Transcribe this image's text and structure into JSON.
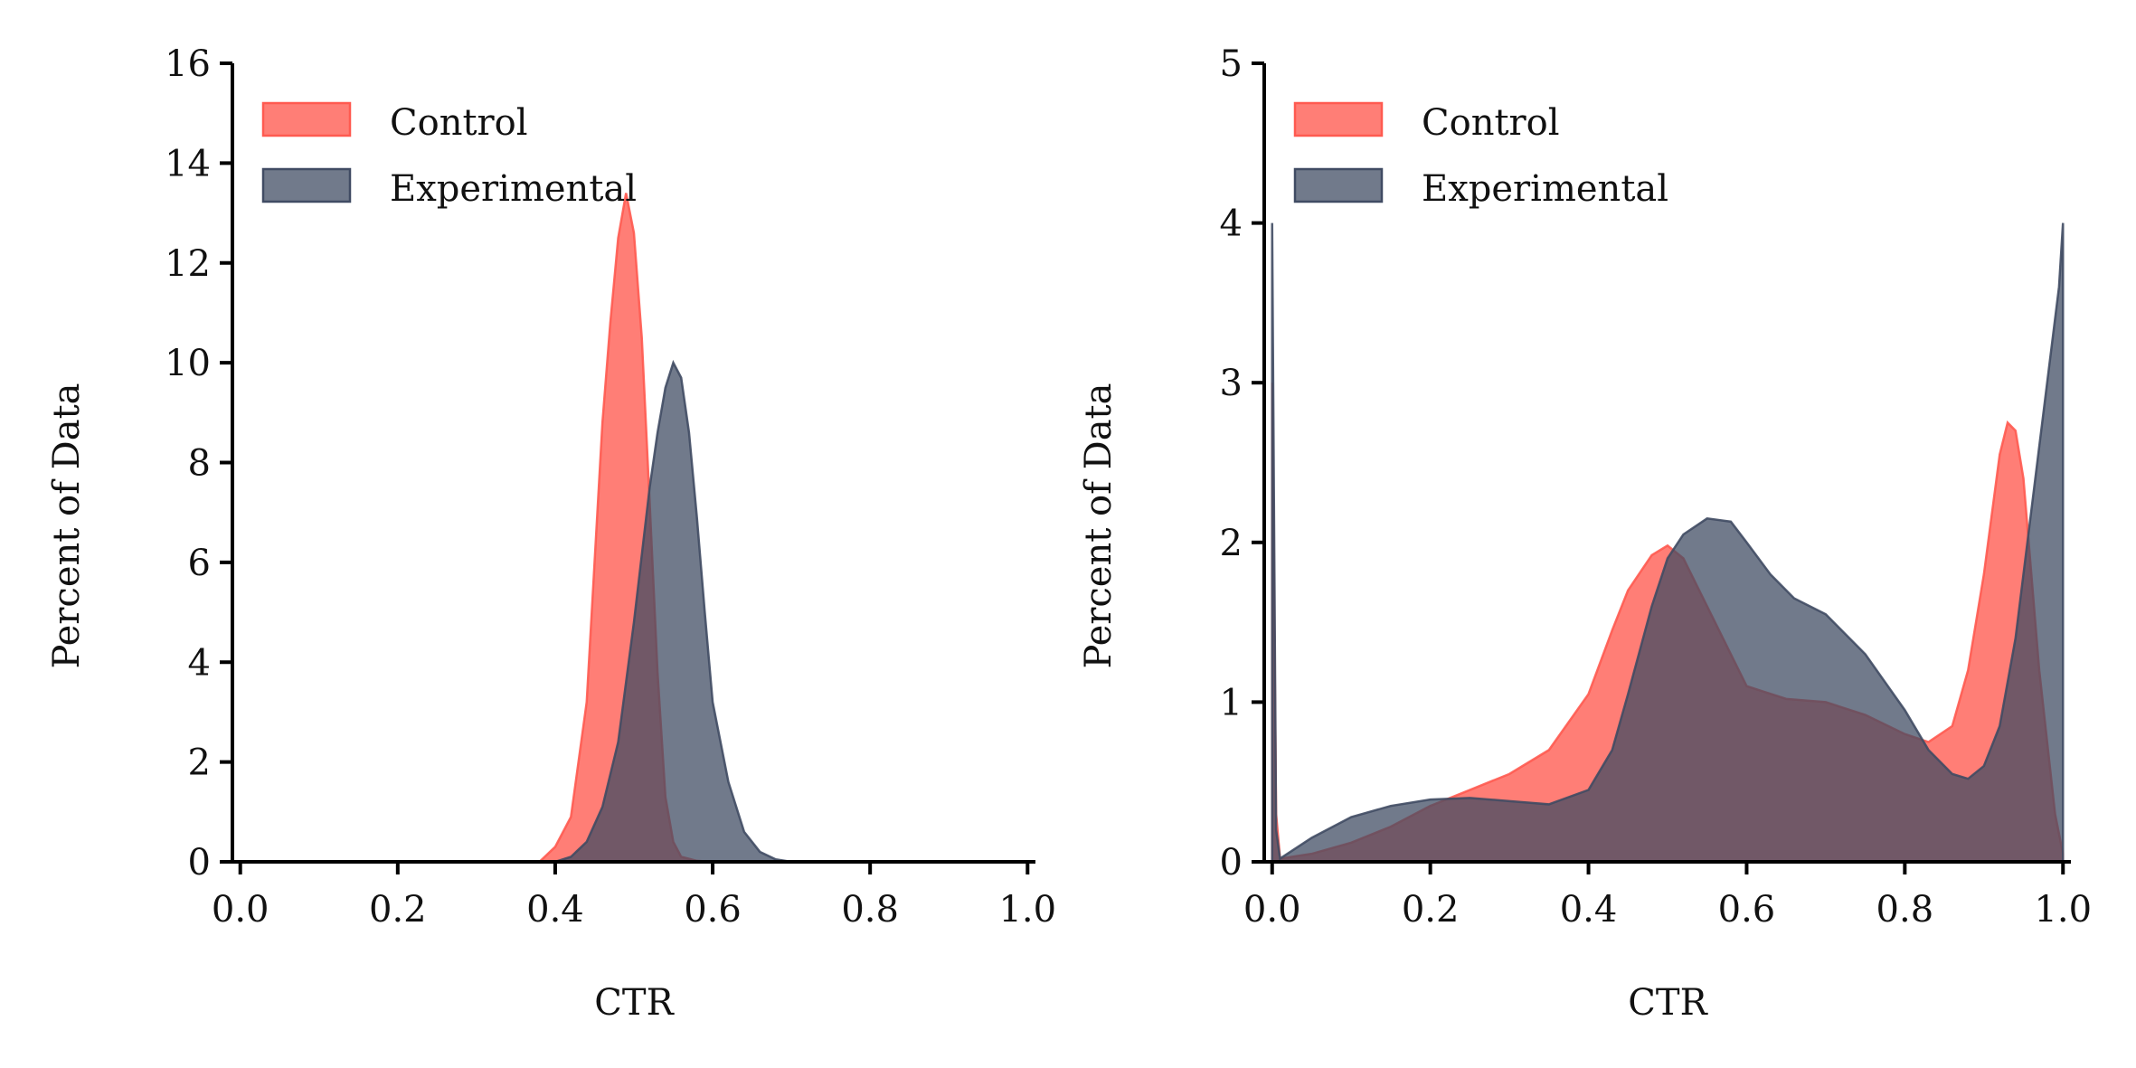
{
  "colors": {
    "control": "#ff5a50",
    "experimental": "#404b63"
  },
  "chart_data": [
    {
      "type": "area",
      "title": "",
      "xlabel": "CTR",
      "ylabel": "Percent of Data",
      "xlim": [
        -0.01,
        1.01
      ],
      "ylim": [
        0,
        16
      ],
      "xticks": [
        "0.0",
        "0.2",
        "0.4",
        "0.6",
        "0.8",
        "1.0"
      ],
      "yticks": [
        "0",
        "2",
        "4",
        "6",
        "8",
        "10",
        "12",
        "14",
        "16"
      ],
      "grid": false,
      "legend_position": "top-left",
      "series": [
        {
          "name": "Control",
          "x": [
            0.0,
            0.38,
            0.4,
            0.42,
            0.44,
            0.45,
            0.46,
            0.47,
            0.48,
            0.49,
            0.5,
            0.51,
            0.52,
            0.53,
            0.54,
            0.55,
            0.56,
            0.58,
            0.6,
            1.0
          ],
          "y": [
            0,
            0,
            0.3,
            0.9,
            3.2,
            6.0,
            8.8,
            10.8,
            12.5,
            13.4,
            12.6,
            10.5,
            7.2,
            3.8,
            1.3,
            0.4,
            0.1,
            0.02,
            0,
            0
          ]
        },
        {
          "name": "Experimental",
          "x": [
            0.0,
            0.4,
            0.42,
            0.44,
            0.46,
            0.48,
            0.5,
            0.52,
            0.53,
            0.54,
            0.55,
            0.56,
            0.57,
            0.58,
            0.59,
            0.6,
            0.62,
            0.64,
            0.66,
            0.68,
            0.7,
            1.0
          ],
          "y": [
            0,
            0,
            0.1,
            0.4,
            1.1,
            2.4,
            4.8,
            7.5,
            8.6,
            9.5,
            10.0,
            9.7,
            8.6,
            6.9,
            5.0,
            3.2,
            1.6,
            0.6,
            0.2,
            0.05,
            0,
            0
          ]
        }
      ]
    },
    {
      "type": "area",
      "title": "",
      "xlabel": "CTR",
      "ylabel": "Percent of Data",
      "xlim": [
        -0.01,
        1.01
      ],
      "ylim": [
        0,
        5
      ],
      "xticks": [
        "0.0",
        "0.2",
        "0.4",
        "0.6",
        "0.8",
        "1.0"
      ],
      "yticks": [
        "0",
        "1",
        "2",
        "3",
        "4",
        "5"
      ],
      "grid": false,
      "legend_position": "top-left",
      "series": [
        {
          "name": "Control",
          "x": [
            0.0,
            0.0,
            0.005,
            0.01,
            0.05,
            0.1,
            0.15,
            0.2,
            0.25,
            0.3,
            0.35,
            0.4,
            0.43,
            0.45,
            0.48,
            0.5,
            0.52,
            0.55,
            0.58,
            0.6,
            0.65,
            0.7,
            0.75,
            0.8,
            0.83,
            0.86,
            0.88,
            0.9,
            0.92,
            0.93,
            0.94,
            0.95,
            0.97,
            0.99,
            1.0,
            1.0
          ],
          "y": [
            0,
            3.0,
            0.3,
            0.02,
            0.05,
            0.12,
            0.22,
            0.35,
            0.45,
            0.55,
            0.7,
            1.05,
            1.45,
            1.7,
            1.92,
            1.98,
            1.9,
            1.6,
            1.3,
            1.1,
            1.02,
            1.0,
            0.92,
            0.8,
            0.75,
            0.85,
            1.2,
            1.8,
            2.55,
            2.75,
            2.7,
            2.4,
            1.2,
            0.3,
            0.05,
            0
          ]
        },
        {
          "name": "Experimental",
          "x": [
            0.0,
            0.0,
            0.005,
            0.01,
            0.05,
            0.1,
            0.15,
            0.2,
            0.25,
            0.3,
            0.35,
            0.4,
            0.43,
            0.45,
            0.48,
            0.5,
            0.52,
            0.55,
            0.58,
            0.6,
            0.63,
            0.66,
            0.7,
            0.75,
            0.8,
            0.83,
            0.86,
            0.88,
            0.9,
            0.92,
            0.94,
            0.96,
            0.98,
            0.995,
            1.0,
            1.0
          ],
          "y": [
            0,
            4.0,
            0.2,
            0.02,
            0.15,
            0.28,
            0.35,
            0.39,
            0.4,
            0.38,
            0.36,
            0.45,
            0.7,
            1.05,
            1.6,
            1.9,
            2.05,
            2.15,
            2.13,
            2.0,
            1.8,
            1.65,
            1.55,
            1.3,
            0.95,
            0.7,
            0.55,
            0.52,
            0.6,
            0.85,
            1.4,
            2.2,
            3.0,
            3.6,
            4.0,
            0
          ]
        }
      ]
    }
  ]
}
